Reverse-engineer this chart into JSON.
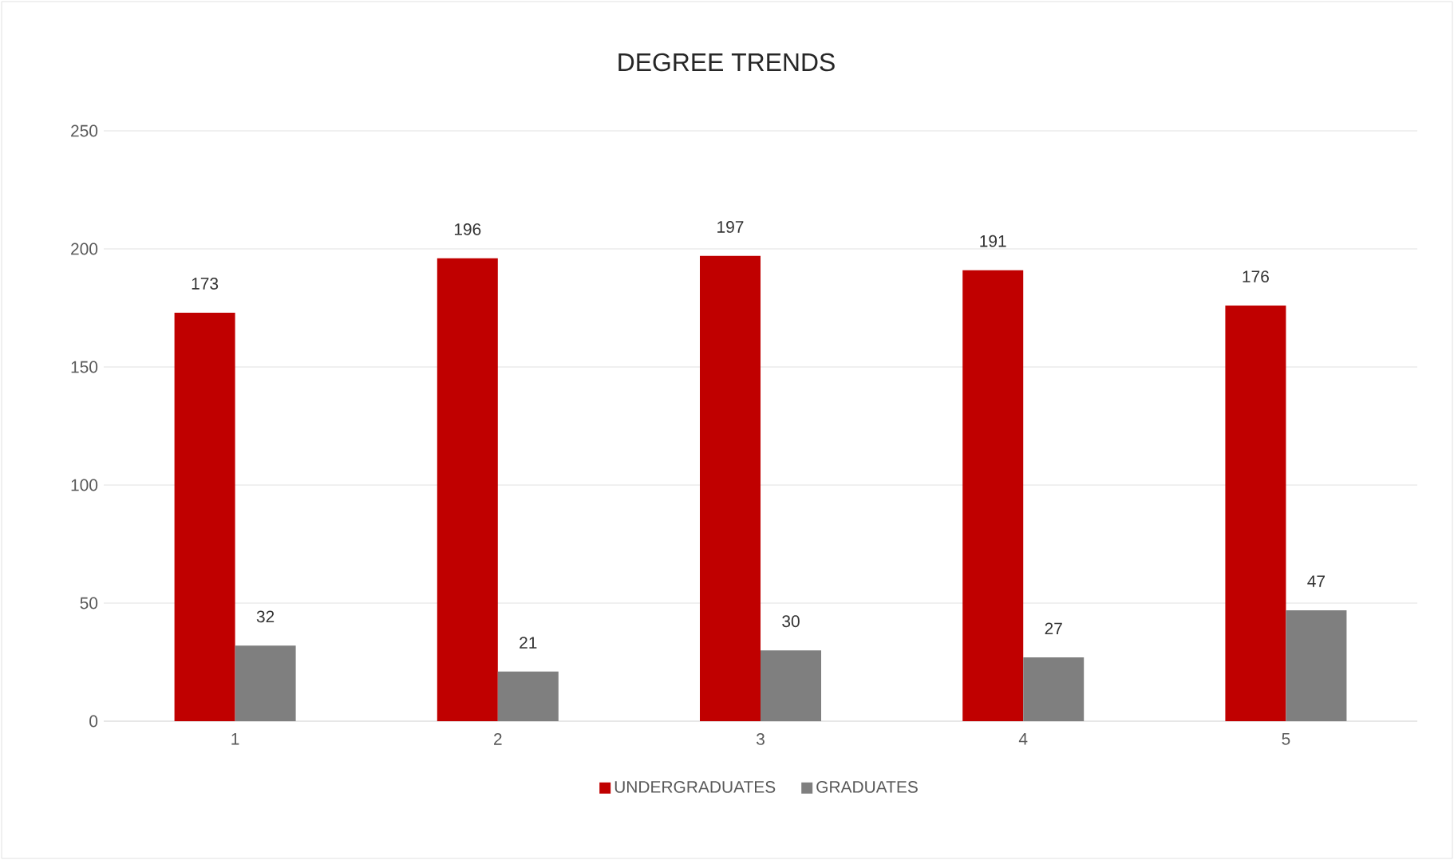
{
  "chart_data": {
    "type": "bar",
    "title": "DEGREE TRENDS",
    "categories": [
      "1",
      "2",
      "3",
      "4",
      "5"
    ],
    "series": [
      {
        "name": "UNDERGRADUATES",
        "color": "#c00000",
        "values": [
          173,
          196,
          197,
          191,
          176
        ]
      },
      {
        "name": "GRADUATES",
        "color": "#7f7f7f",
        "values": [
          32,
          21,
          30,
          27,
          47
        ]
      }
    ],
    "ylim": [
      0,
      250
    ],
    "yticks": [
      0,
      50,
      100,
      150,
      200,
      250
    ],
    "grid": "y",
    "legend": "bottom",
    "data_labels": true
  }
}
